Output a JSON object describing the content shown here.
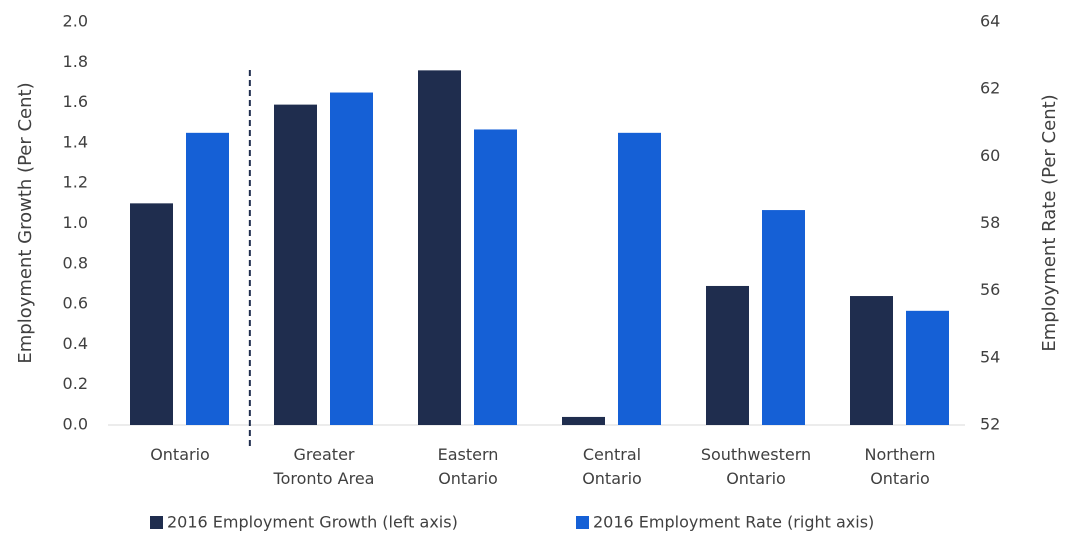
{
  "chart_data": {
    "type": "bar",
    "categories": [
      "Ontario",
      "Greater\nToronto Area",
      "Eastern\nOntario",
      "Central\nOntario",
      "Southwestern\nOntario",
      "Northern\nOntario"
    ],
    "series": [
      {
        "name": "2016 Employment Growth (left axis)",
        "color": "#1f2d4e",
        "values": [
          1.1,
          1.59,
          1.76,
          0.04,
          0.69,
          0.64
        ]
      },
      {
        "name": "2016 Employment Rate (right axis)",
        "color": "#1560d6",
        "axis": "y2",
        "values": [
          60.7,
          61.9,
          60.8,
          60.7,
          58.4,
          55.4
        ]
      }
    ],
    "ylabel": "Employment Growth (Per Cent)",
    "y2label": "Employment Rate (Per Cent)",
    "ylim": [
      0,
      2
    ],
    "yticks": [
      {
        "value": 0,
        "label": "0.0"
      },
      {
        "value": 0.2,
        "label": "0.2"
      },
      {
        "value": 0.4,
        "label": "0.4"
      },
      {
        "value": 0.6,
        "label": "0.6"
      },
      {
        "value": 0.8,
        "label": "0.8"
      },
      {
        "value": 1,
        "label": "1.0"
      },
      {
        "value": 1.2,
        "label": "1.2"
      },
      {
        "value": 1.4,
        "label": "1.4"
      },
      {
        "value": 1.6,
        "label": "1.6"
      },
      {
        "value": 1.8,
        "label": "1.8"
      },
      {
        "value": 2,
        "label": "2.0"
      }
    ],
    "y2lim": [
      52,
      64
    ],
    "y2ticks": [
      52,
      54,
      56,
      58,
      60,
      62,
      64
    ],
    "legend": "bottom"
  }
}
